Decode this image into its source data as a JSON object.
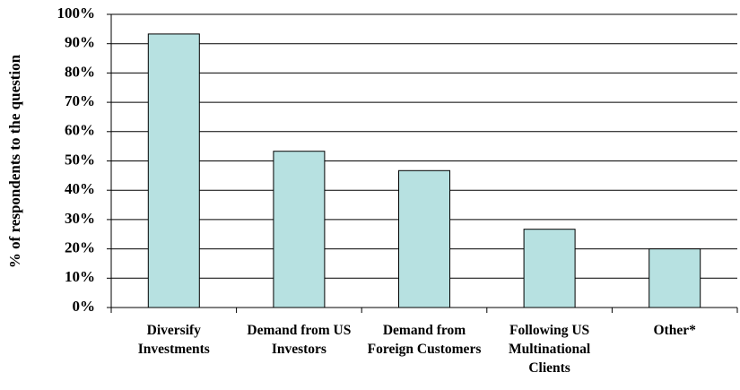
{
  "chart_data": {
    "type": "bar",
    "y_label": "% of respondents to the question",
    "categories": [
      "Diversify Investments",
      "Demand from US Investors",
      "Demand from Foreign Customers",
      "Following US Multinational Clients",
      "Other*"
    ],
    "values": [
      93.3,
      53.3,
      46.7,
      26.7,
      20
    ],
    "color": "#b7e1e1",
    "ylim": [
      0,
      100
    ],
    "yticks": [
      {
        "value": 0,
        "label": "0%"
      },
      {
        "value": 10,
        "label": "10%"
      },
      {
        "value": 20,
        "label": "20%"
      },
      {
        "value": 30,
        "label": "30%"
      },
      {
        "value": 40,
        "label": "40%"
      },
      {
        "value": 50,
        "label": "50%"
      },
      {
        "value": 60,
        "label": "60%"
      },
      {
        "value": 70,
        "label": "70%"
      },
      {
        "value": 80,
        "label": "80%"
      },
      {
        "value": 90,
        "label": "90%"
      },
      {
        "value": 100,
        "label": "100%"
      }
    ],
    "grid": true
  }
}
